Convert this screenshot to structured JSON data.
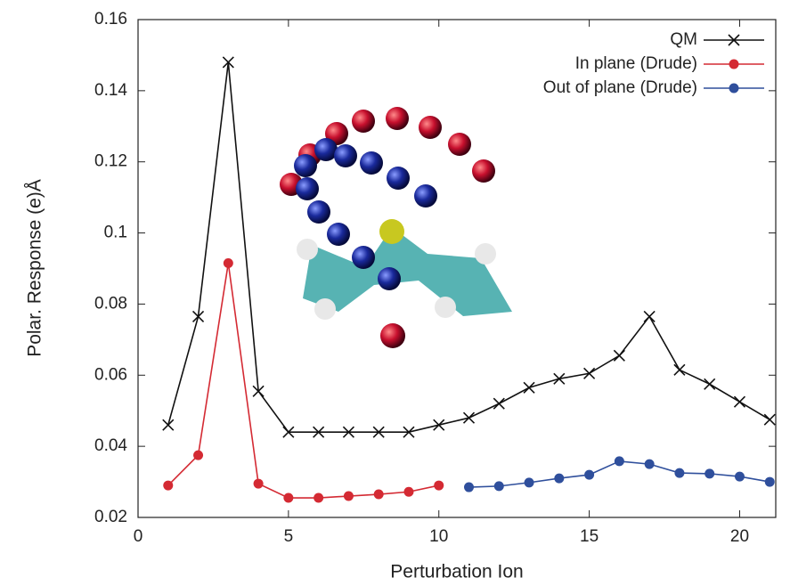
{
  "chart_data": {
    "type": "line",
    "x_label": "Perturbation Ion",
    "y_label": "Polar. Response (e)Å",
    "xlim": [
      0,
      21.2
    ],
    "xticks": [
      0,
      5,
      10,
      15,
      20
    ],
    "ylim": [
      0.02,
      0.16
    ],
    "yticks": [
      0.02,
      0.04,
      0.06,
      0.08,
      0.1,
      0.12,
      0.14,
      0.16
    ],
    "legend": "upper right",
    "series": [
      {
        "name": "QM",
        "color": "#111111",
        "marker": "x",
        "x": [
          1,
          2,
          3,
          4,
          5,
          6,
          7,
          8,
          9,
          10,
          11,
          12,
          13,
          14,
          15,
          16,
          17,
          18,
          19,
          20,
          21
        ],
        "values": [
          0.046,
          0.0765,
          0.148,
          0.0555,
          0.044,
          0.044,
          0.044,
          0.044,
          0.044,
          0.046,
          0.048,
          0.052,
          0.0565,
          0.059,
          0.0605,
          0.0655,
          0.0765,
          0.0615,
          0.0575,
          0.0525,
          0.0475
        ]
      },
      {
        "name": "In plane (Drude)",
        "color": "#d42a33",
        "marker": "circle",
        "x": [
          1,
          2,
          3,
          4,
          5,
          6,
          7,
          8,
          9,
          10
        ],
        "values": [
          0.029,
          0.0375,
          0.0915,
          0.0295,
          0.0255,
          0.0255,
          0.026,
          0.0265,
          0.0272,
          0.029
        ]
      },
      {
        "name": "Out of plane (Drude)",
        "color": "#2f4f9c",
        "marker": "circle",
        "x": [
          11,
          12,
          13,
          14,
          15,
          16,
          17,
          18,
          19,
          20,
          21
        ],
        "values": [
          0.0285,
          0.0288,
          0.0298,
          0.031,
          0.032,
          0.0358,
          0.035,
          0.0325,
          0.0323,
          0.0315,
          0.03
        ]
      }
    ]
  }
}
